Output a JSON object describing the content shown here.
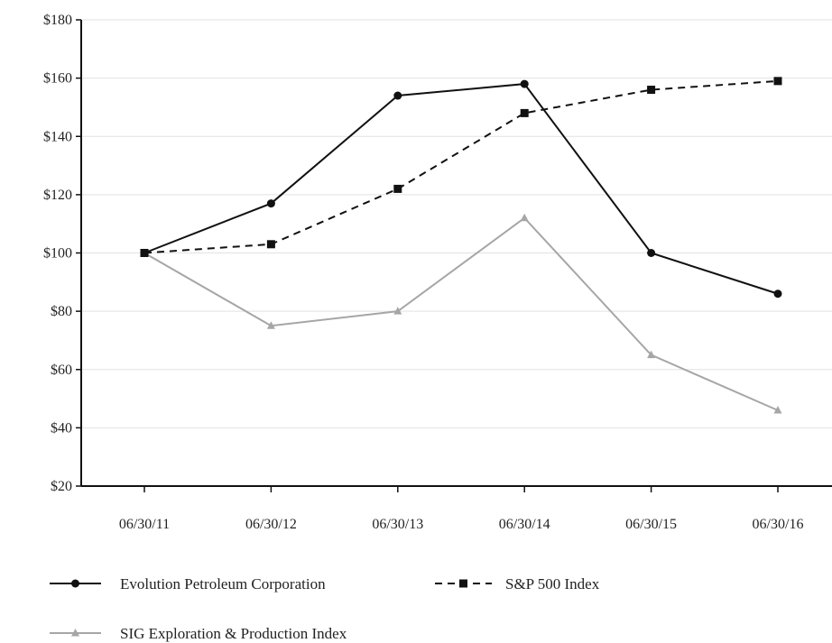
{
  "chart_data": {
    "type": "line",
    "title": "",
    "xlabel": "",
    "ylabel": "",
    "x": [
      "06/30/11",
      "06/30/12",
      "06/30/13",
      "06/30/14",
      "06/30/15",
      "06/30/16"
    ],
    "ylim": [
      20,
      180
    ],
    "yticks": [
      20,
      40,
      60,
      80,
      100,
      120,
      140,
      160,
      180
    ],
    "ytick_labels": [
      "$20",
      "$40",
      "$60",
      "$80",
      "$100",
      "$120",
      "$140",
      "$160",
      "$180"
    ],
    "grid": true,
    "legend_position": "bottom",
    "series": [
      {
        "name": "Evolution Petroleum Corporation",
        "values": [
          100,
          117,
          154,
          158,
          100,
          86
        ],
        "color": "#111111",
        "line_style": "solid",
        "marker": "circle"
      },
      {
        "name": "S&P 500 Index",
        "values": [
          100,
          103,
          122,
          148,
          156,
          159
        ],
        "color": "#111111",
        "line_style": "dashed",
        "marker": "square"
      },
      {
        "name": "SIG Exploration & Production Index",
        "values": [
          100,
          75,
          80,
          112,
          65,
          46
        ],
        "color": "#a6a6a6",
        "line_style": "solid",
        "marker": "triangle"
      }
    ]
  }
}
